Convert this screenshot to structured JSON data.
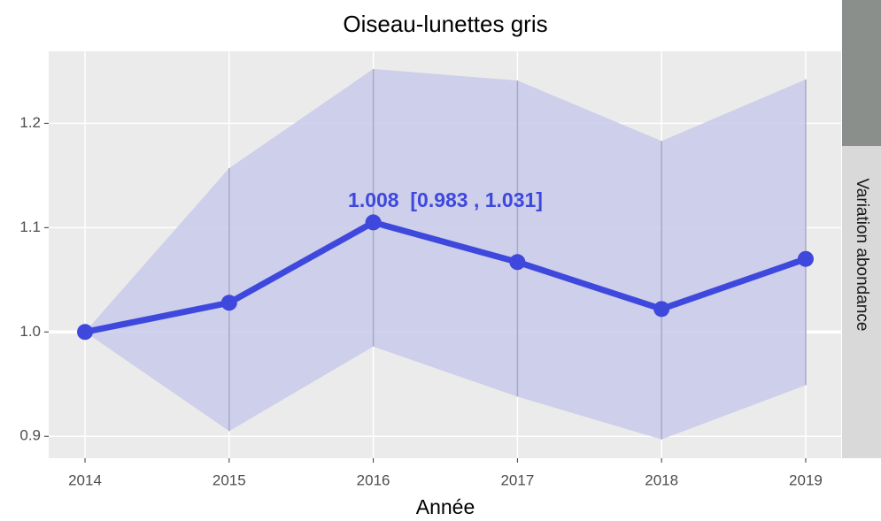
{
  "chart_data": {
    "type": "line",
    "title": "Oiseau-lunettes gris",
    "x_label": "Année",
    "facet_label": "Variation abondance",
    "annotation": "1.008  [0.983 , 1.031]",
    "x": [
      2014,
      2015,
      2016,
      2017,
      2018,
      2019
    ],
    "series": [
      {
        "name": "Variation abondance",
        "color": "#3f48dc",
        "values": [
          1.0,
          1.028,
          1.105,
          1.067,
          1.022,
          1.07
        ],
        "upper": [
          1.0,
          1.157,
          1.252,
          1.241,
          1.183,
          1.242
        ],
        "lower": [
          1.0,
          0.905,
          0.986,
          0.938,
          0.897,
          0.949
        ],
        "band_color": "#c8caeb"
      }
    ],
    "reference_line": 1.0,
    "xlim": [
      2013.748,
      2019.246
    ],
    "xticks": [
      2014,
      2015,
      2016,
      2017,
      2018,
      2019
    ],
    "ylim": [
      0.879,
      1.269
    ],
    "yticks": [
      0.9,
      {
        "value": 1.0,
        "label": "1.0"
      },
      1.1,
      1.2
    ],
    "grid": true
  }
}
